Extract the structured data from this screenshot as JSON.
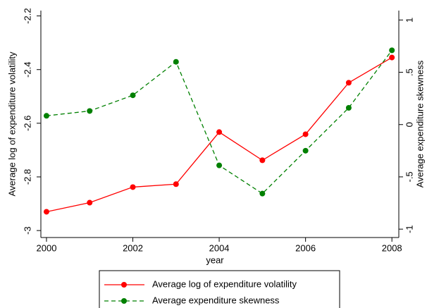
{
  "chart_data": {
    "type": "line",
    "x_label": "year",
    "y_label": "Average log of expenditure volatility",
    "y2_label": "Average expenditure skewness",
    "x": [
      2000,
      2001,
      2002,
      2003,
      2004,
      2005,
      2006,
      2007,
      2008
    ],
    "series": [
      {
        "name": "Average log of expenditure volatility",
        "color": "#ff0000",
        "style": "solid",
        "axis": "y",
        "values": [
          -2.93,
          -2.896,
          -2.838,
          -2.827,
          -2.633,
          -2.738,
          -2.641,
          -2.449,
          -2.355
        ]
      },
      {
        "name": "Average expenditure skewness",
        "color": "#008000",
        "style": "dashed",
        "axis": "y2",
        "values": [
          0.084,
          0.13,
          0.28,
          0.6,
          -0.39,
          -0.66,
          -0.25,
          0.16,
          0.71
        ]
      }
    ],
    "xlim": [
      1999.87,
      2008.16
    ],
    "xticks": [
      2000,
      2002,
      2004,
      2006,
      2008
    ],
    "ylim": [
      -3.026,
      -2.18
    ],
    "yticks": [
      -2.2,
      -2.4,
      -2.6,
      -2.8,
      -3
    ],
    "y2lim": [
      -1.08,
      1.09
    ],
    "y2ticks": [
      1,
      {
        "value": 0.5,
        "label": ".5"
      },
      0,
      {
        "value": -0.5,
        "label": "-.5"
      },
      -1
    ],
    "legend": "bottom"
  }
}
